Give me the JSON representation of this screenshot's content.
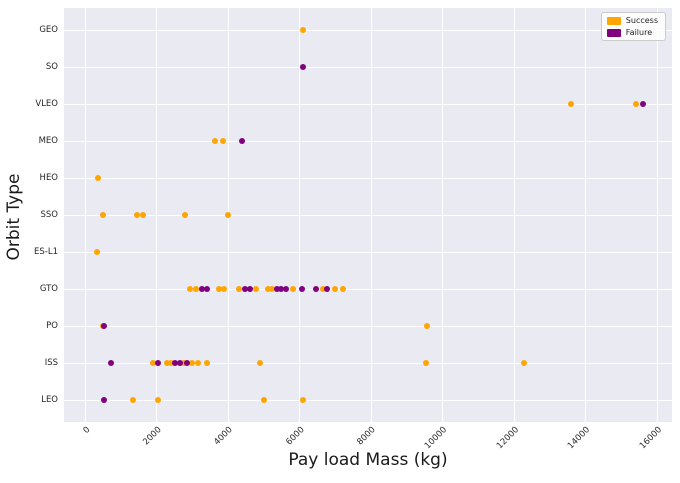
{
  "chart_data": {
    "type": "scatter",
    "title": "",
    "xlabel": "Pay load Mass (kg)",
    "ylabel": "Orbit Type",
    "x_ticks": [
      0,
      2000,
      4000,
      6000,
      8000,
      10000,
      12000,
      14000,
      16000
    ],
    "xlim": [
      -590,
      16420
    ],
    "categories_top_to_bottom": [
      "GEO",
      "SO",
      "VLEO",
      "MEO",
      "HEO",
      "SSO",
      "ES-L1",
      "GTO",
      "PO",
      "ISS",
      "LEO"
    ],
    "grid": true,
    "plot_background": "#eaeaf2",
    "gridline_color": "#ffffff",
    "legend": {
      "position": "upper right",
      "entries": [
        {
          "label": "Success",
          "color": "#ffa500"
        },
        {
          "label": "Failure",
          "color": "#800080"
        }
      ]
    },
    "series": [
      {
        "name": "Success",
        "color": "#ffa500",
        "points": [
          {
            "orbit": "GEO",
            "mass": 6100
          },
          {
            "orbit": "VLEO",
            "mass": 13600
          },
          {
            "orbit": "VLEO",
            "mass": 15400
          },
          {
            "orbit": "MEO",
            "mass": 3640
          },
          {
            "orbit": "MEO",
            "mass": 3860
          },
          {
            "orbit": "HEO",
            "mass": 350
          },
          {
            "orbit": "SSO",
            "mass": 500
          },
          {
            "orbit": "SSO",
            "mass": 1450
          },
          {
            "orbit": "SSO",
            "mass": 1620
          },
          {
            "orbit": "SSO",
            "mass": 2800
          },
          {
            "orbit": "SSO",
            "mass": 4000
          },
          {
            "orbit": "ES-L1",
            "mass": 330
          },
          {
            "orbit": "GTO",
            "mass": 2940
          },
          {
            "orbit": "GTO",
            "mass": 3100
          },
          {
            "orbit": "GTO",
            "mass": 3750
          },
          {
            "orbit": "GTO",
            "mass": 3890
          },
          {
            "orbit": "GTO",
            "mass": 4310
          },
          {
            "orbit": "GTO",
            "mass": 4780
          },
          {
            "orbit": "GTO",
            "mass": 5120
          },
          {
            "orbit": "GTO",
            "mass": 5230
          },
          {
            "orbit": "GTO",
            "mass": 5820
          },
          {
            "orbit": "GTO",
            "mass": 6660
          },
          {
            "orbit": "GTO",
            "mass": 6990
          },
          {
            "orbit": "GTO",
            "mass": 7220
          },
          {
            "orbit": "PO",
            "mass": 500
          },
          {
            "orbit": "PO",
            "mass": 9580
          },
          {
            "orbit": "ISS",
            "mass": 1910
          },
          {
            "orbit": "ISS",
            "mass": 2290
          },
          {
            "orbit": "ISS",
            "mass": 2400
          },
          {
            "orbit": "ISS",
            "mass": 2770
          },
          {
            "orbit": "ISS",
            "mass": 2980
          },
          {
            "orbit": "ISS",
            "mass": 3170
          },
          {
            "orbit": "ISS",
            "mass": 3400
          },
          {
            "orbit": "ISS",
            "mass": 4900
          },
          {
            "orbit": "ISS",
            "mass": 9540
          },
          {
            "orbit": "ISS",
            "mass": 12280
          },
          {
            "orbit": "LEO",
            "mass": 1340
          },
          {
            "orbit": "LEO",
            "mass": 2030
          },
          {
            "orbit": "LEO",
            "mass": 5010
          },
          {
            "orbit": "LEO",
            "mass": 6100
          }
        ]
      },
      {
        "name": "Failure",
        "color": "#800080",
        "points": [
          {
            "orbit": "SO",
            "mass": 6100
          },
          {
            "orbit": "VLEO",
            "mass": 15600
          },
          {
            "orbit": "MEO",
            "mass": 4390
          },
          {
            "orbit": "GTO",
            "mass": 3270
          },
          {
            "orbit": "GTO",
            "mass": 3410
          },
          {
            "orbit": "GTO",
            "mass": 4480
          },
          {
            "orbit": "GTO",
            "mass": 4620
          },
          {
            "orbit": "GTO",
            "mass": 5370
          },
          {
            "orbit": "GTO",
            "mass": 5480
          },
          {
            "orbit": "GTO",
            "mass": 5620
          },
          {
            "orbit": "GTO",
            "mass": 6070
          },
          {
            "orbit": "GTO",
            "mass": 6460
          },
          {
            "orbit": "GTO",
            "mass": 6770
          },
          {
            "orbit": "PO",
            "mass": 530
          },
          {
            "orbit": "ISS",
            "mass": 730
          },
          {
            "orbit": "ISS",
            "mass": 2050
          },
          {
            "orbit": "ISS",
            "mass": 2520
          },
          {
            "orbit": "ISS",
            "mass": 2660
          },
          {
            "orbit": "ISS",
            "mass": 2860
          },
          {
            "orbit": "LEO",
            "mass": 530
          }
        ]
      }
    ]
  }
}
